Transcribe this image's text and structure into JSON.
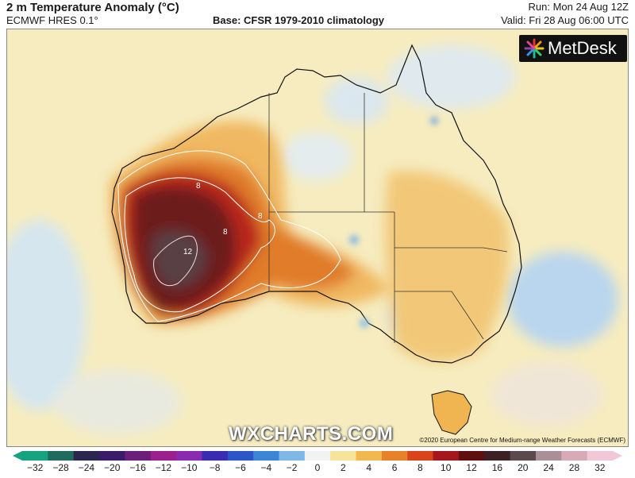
{
  "header": {
    "title": "2 m Temperature Anomaly (°C)",
    "model": "ECMWF HRES 0.1°",
    "base": "Base: CFSR 1979-2010 climatology",
    "run": "Run: Mon 24 Aug 12Z",
    "valid": "Valid: Fri 28 Aug 06:00 UTC"
  },
  "logo": {
    "text": "MetDesk"
  },
  "watermark": "WXCHARTS.COM",
  "copyright": "©2020 European Centre for Medium-range Weather Forecasts (ECMWF)",
  "map": {
    "contour_labels": [
      "8",
      "8",
      "8",
      "12"
    ]
  },
  "colorbar": {
    "ticks": [
      "−32",
      "−28",
      "−24",
      "−20",
      "−16",
      "−12",
      "−10",
      "−8",
      "−6",
      "−4",
      "−2",
      "0",
      "2",
      "4",
      "6",
      "8",
      "10",
      "12",
      "16",
      "20",
      "24",
      "28",
      "32"
    ],
    "colors": [
      "#16a37f",
      "#1f6b5e",
      "#2a2650",
      "#3a1b6b",
      "#6b1f7a",
      "#9b1f8c",
      "#8a2ab0",
      "#3a2cb0",
      "#2c55c8",
      "#3b86d6",
      "#7fb7e6",
      "#f2f2f2",
      "#f5e49a",
      "#f2b850",
      "#e8822a",
      "#d9441c",
      "#a4171c",
      "#5e1010",
      "#3c2024",
      "#5a4a4e",
      "#aa8e98",
      "#d8aab8",
      "#f0c8d8"
    ]
  }
}
